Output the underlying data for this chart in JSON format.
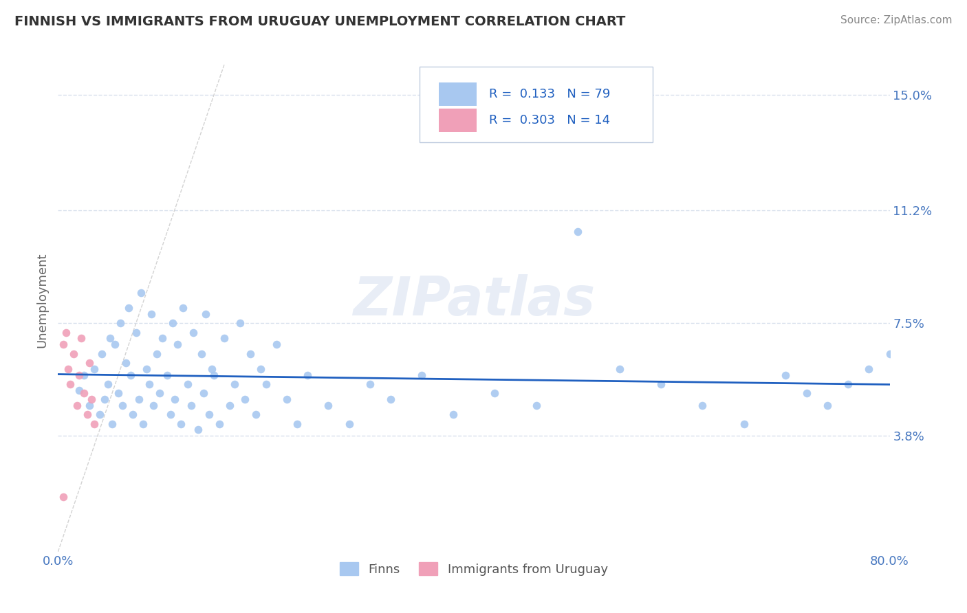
{
  "title": "FINNISH VS IMMIGRANTS FROM URUGUAY UNEMPLOYMENT CORRELATION CHART",
  "source": "Source: ZipAtlas.com",
  "ylabel": "Unemployment",
  "xlim": [
    0.0,
    0.8
  ],
  "ylim": [
    0.0,
    0.165
  ],
  "yticks": [
    0.038,
    0.075,
    0.112,
    0.15
  ],
  "ytick_labels": [
    "3.8%",
    "7.5%",
    "11.2%",
    "15.0%"
  ],
  "xticks": [
    0.0,
    0.1,
    0.2,
    0.3,
    0.4,
    0.5,
    0.6,
    0.7,
    0.8
  ],
  "xtick_labels": [
    "0.0%",
    "",
    "",
    "",
    "",
    "",
    "",
    "",
    "80.0%"
  ],
  "legend_R1": "0.133",
  "legend_N1": "79",
  "legend_R2": "0.303",
  "legend_N2": "14",
  "blue_color": "#a8c8f0",
  "pink_color": "#f0a0b8",
  "trend_color": "#2060c0",
  "ref_line_color": "#c8c8c8",
  "grid_color": "#d8e0ec",
  "title_color": "#333333",
  "axis_label_color": "#4878c0",
  "watermark": "ZIPatlas",
  "finns_x": [
    0.02,
    0.025,
    0.03,
    0.035,
    0.04,
    0.042,
    0.045,
    0.048,
    0.05,
    0.052,
    0.055,
    0.058,
    0.06,
    0.062,
    0.065,
    0.068,
    0.07,
    0.072,
    0.075,
    0.078,
    0.08,
    0.082,
    0.085,
    0.088,
    0.09,
    0.092,
    0.095,
    0.098,
    0.1,
    0.105,
    0.108,
    0.11,
    0.112,
    0.115,
    0.118,
    0.12,
    0.125,
    0.128,
    0.13,
    0.135,
    0.138,
    0.14,
    0.142,
    0.145,
    0.148,
    0.15,
    0.155,
    0.16,
    0.165,
    0.17,
    0.175,
    0.18,
    0.185,
    0.19,
    0.195,
    0.2,
    0.21,
    0.22,
    0.23,
    0.24,
    0.26,
    0.28,
    0.3,
    0.32,
    0.35,
    0.38,
    0.42,
    0.46,
    0.5,
    0.54,
    0.58,
    0.62,
    0.66,
    0.7,
    0.72,
    0.74,
    0.76,
    0.78,
    0.8
  ],
  "finns_y": [
    0.053,
    0.058,
    0.048,
    0.06,
    0.045,
    0.065,
    0.05,
    0.055,
    0.07,
    0.042,
    0.068,
    0.052,
    0.075,
    0.048,
    0.062,
    0.08,
    0.058,
    0.045,
    0.072,
    0.05,
    0.085,
    0.042,
    0.06,
    0.055,
    0.078,
    0.048,
    0.065,
    0.052,
    0.07,
    0.058,
    0.045,
    0.075,
    0.05,
    0.068,
    0.042,
    0.08,
    0.055,
    0.048,
    0.072,
    0.04,
    0.065,
    0.052,
    0.078,
    0.045,
    0.06,
    0.058,
    0.042,
    0.07,
    0.048,
    0.055,
    0.075,
    0.05,
    0.065,
    0.045,
    0.06,
    0.055,
    0.068,
    0.05,
    0.042,
    0.058,
    0.048,
    0.042,
    0.055,
    0.05,
    0.058,
    0.045,
    0.052,
    0.048,
    0.105,
    0.06,
    0.055,
    0.048,
    0.042,
    0.058,
    0.052,
    0.048,
    0.055,
    0.06,
    0.065
  ],
  "uruguay_x": [
    0.005,
    0.008,
    0.01,
    0.012,
    0.015,
    0.018,
    0.02,
    0.022,
    0.025,
    0.028,
    0.03,
    0.032,
    0.035,
    0.005
  ],
  "uruguay_y": [
    0.068,
    0.072,
    0.06,
    0.055,
    0.065,
    0.048,
    0.058,
    0.07,
    0.052,
    0.045,
    0.062,
    0.05,
    0.042,
    0.018
  ]
}
